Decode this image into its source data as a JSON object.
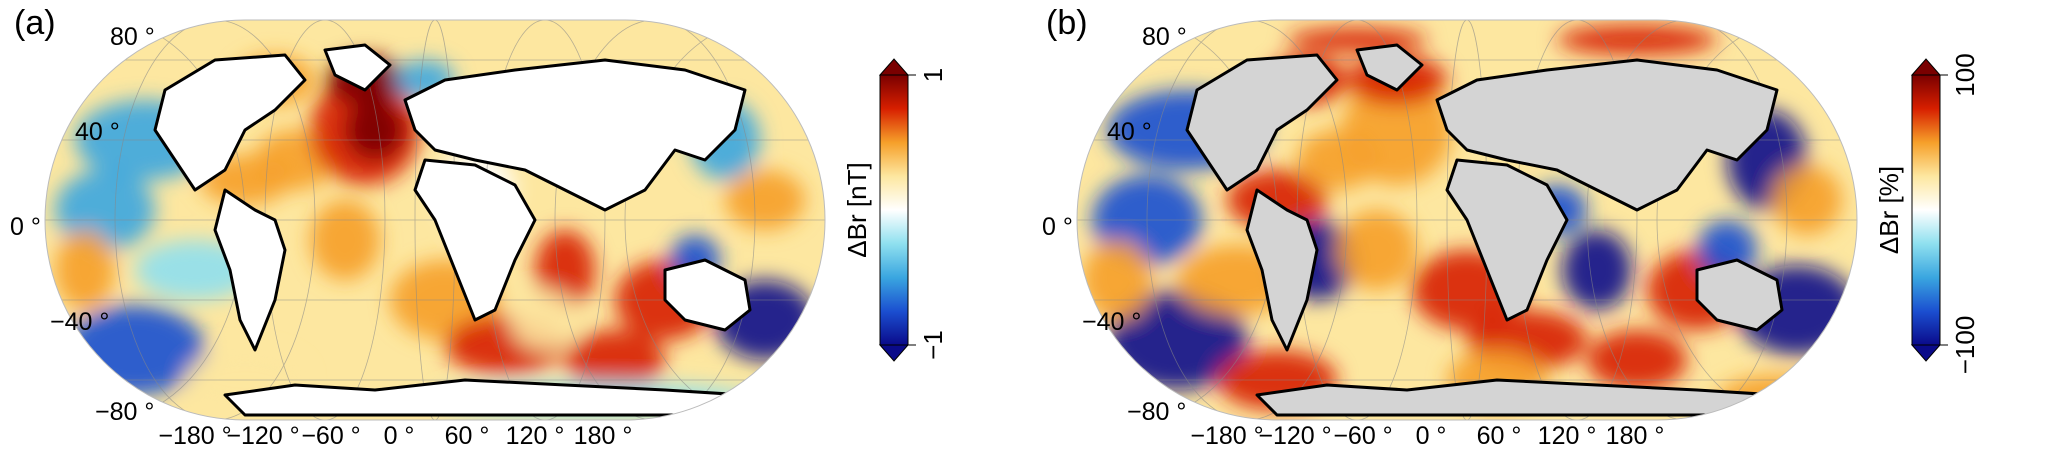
{
  "panels": [
    {
      "label": "(a)",
      "colorbar": {
        "title": "ΔBr [nT]",
        "max_label": "1",
        "min_label": "−1"
      },
      "land_fill": "#ffffff"
    },
    {
      "label": "(b)",
      "colorbar": {
        "title": "ΔBr [%]",
        "max_label": "100",
        "min_label": "−100"
      },
      "land_fill": "#d4d4d4"
    }
  ],
  "lat_labels": [
    "80 °",
    "40 °",
    "0 °",
    "−40 °",
    "−80 °"
  ],
  "lon_labels": [
    "−180 °",
    "−120 °",
    "−60 °",
    "0 °",
    "60 °",
    "120 °",
    "180 °"
  ],
  "colors": {
    "darkred": "#7a0000",
    "red": "#d71f00",
    "orange": "#f6a02a",
    "yellow": "#fde7a0",
    "white": "#ffffff",
    "cyan": "#8fe0ef",
    "lightblue": "#3aa6e0",
    "blue": "#1b4fd0",
    "navy": "#0a0a8a"
  }
}
